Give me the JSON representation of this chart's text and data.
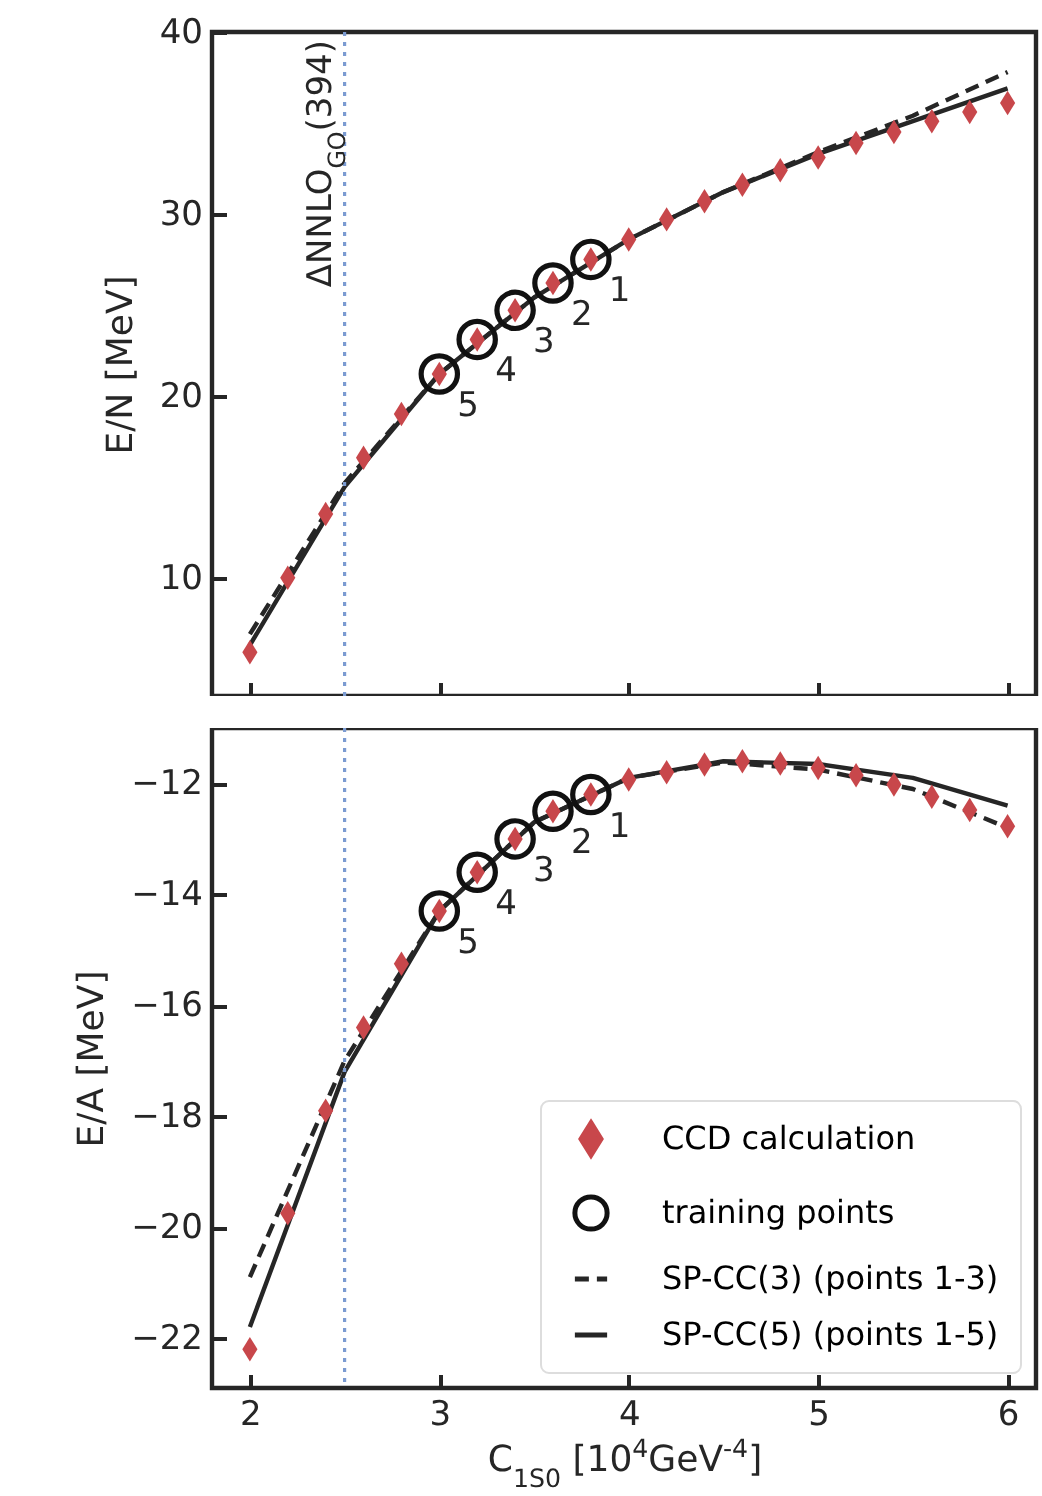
{
  "chart_data": [
    {
      "type": "scatter",
      "ylabel": "E/N [MeV]",
      "xlim": [
        1.8,
        6.15
      ],
      "xticks": [
        2,
        3,
        4,
        5,
        6
      ],
      "ylim": [
        3.5,
        40
      ],
      "yticks": [
        10,
        20,
        30,
        40
      ],
      "tick_labels": "y",
      "grid": false,
      "legend": false,
      "ref_lines": [
        {
          "axis": "x",
          "value": 2.5,
          "label": "ΔNNLO$_{GO}$(394)",
          "color": "#7b9bd1",
          "line_style": "dotted"
        }
      ],
      "annotations": [
        {
          "text": "1",
          "x": 3.8,
          "y": 27.5
        },
        {
          "text": "2",
          "x": 3.6,
          "y": 26.2
        },
        {
          "text": "3",
          "x": 3.4,
          "y": 24.7
        },
        {
          "text": "4",
          "x": 3.2,
          "y": 23.1
        },
        {
          "text": "5",
          "x": 3.0,
          "y": 21.2
        }
      ],
      "series": [
        {
          "type": "line",
          "color": "#262626",
          "line_style": "dashed",
          "marker": "none",
          "x": [
            2,
            2.5,
            3,
            3.5,
            4,
            4.5,
            5,
            5.5,
            6
          ],
          "values": [
            6.9,
            15.2,
            21.2,
            25.4,
            28.6,
            31.2,
            33.4,
            35.4,
            37.8
          ]
        },
        {
          "type": "line",
          "color": "#262626",
          "line_style": "solid",
          "marker": "none",
          "x": [
            2,
            2.5,
            3,
            3.5,
            4,
            4.5,
            5,
            5.5,
            6
          ],
          "values": [
            6.3,
            15.0,
            21.2,
            25.4,
            28.6,
            31.2,
            33.3,
            35.1,
            36.9
          ]
        },
        {
          "type": "scatter",
          "color": "#c8474b",
          "marker": "diamond",
          "x": [
            2,
            2.2,
            2.4,
            2.6,
            2.8,
            3,
            3.2,
            3.4,
            3.6,
            3.8,
            4,
            4.2,
            4.4,
            4.6,
            4.8,
            5,
            5.2,
            5.4,
            5.6,
            5.8,
            6
          ],
          "values": [
            5.9,
            10.0,
            13.5,
            16.6,
            19.0,
            21.2,
            23.1,
            24.7,
            26.2,
            27.5,
            28.6,
            29.7,
            30.7,
            31.6,
            32.4,
            33.1,
            33.9,
            34.5,
            35.1,
            35.6,
            36.1
          ]
        },
        {
          "type": "scatter",
          "color": "#111111",
          "marker": "circle",
          "x": [
            3.8,
            3.6,
            3.4,
            3.2,
            3.0
          ],
          "values": [
            27.5,
            26.2,
            24.7,
            23.1,
            21.2
          ]
        }
      ]
    },
    {
      "type": "scatter",
      "ylabel": "E/A [MeV]",
      "xlabel": "C$_{1S0}$ [10$^{4}$GeV$^{-4}$]",
      "xlim": [
        1.8,
        6.15
      ],
      "xticks": [
        2,
        3,
        4,
        5,
        6
      ],
      "ylim": [
        -22.9,
        -11.0
      ],
      "yticks": [
        -22,
        -20,
        -18,
        -16,
        -14,
        -12
      ],
      "grid": false,
      "legend": "bottom right",
      "ref_lines": [
        {
          "axis": "x",
          "value": 2.5,
          "color": "#7b9bd1",
          "line_style": "dotted"
        }
      ],
      "annotations": [
        {
          "text": "1",
          "x": 3.8,
          "y": -12.2
        },
        {
          "text": "2",
          "x": 3.6,
          "y": -12.5
        },
        {
          "text": "3",
          "x": 3.4,
          "y": -13.0
        },
        {
          "text": "4",
          "x": 3.2,
          "y": -13.6
        },
        {
          "text": "5",
          "x": 3.0,
          "y": -14.3
        }
      ],
      "series": [
        {
          "name": "CCD calculation",
          "type": "scatter",
          "color": "#c8474b",
          "marker": "diamond",
          "x": [
            2,
            2.2,
            2.4,
            2.6,
            2.8,
            3,
            3.2,
            3.4,
            3.6,
            3.8,
            4,
            4.2,
            4.4,
            4.6,
            4.8,
            5,
            5.2,
            5.4,
            5.6,
            5.8,
            6
          ],
          "values": [
            -22.2,
            -19.75,
            -17.9,
            -16.4,
            -15.25,
            -14.3,
            -13.6,
            -13.0,
            -12.5,
            -12.2,
            -11.93,
            -11.8,
            -11.66,
            -11.6,
            -11.64,
            -11.72,
            -11.85,
            -12.02,
            -12.24,
            -12.48,
            -12.77
          ]
        },
        {
          "name": "training points",
          "type": "scatter",
          "color": "#111111",
          "marker": "circle",
          "x": [
            3.8,
            3.6,
            3.4,
            3.2,
            3.0
          ],
          "values": [
            -12.2,
            -12.5,
            -13.0,
            -13.6,
            -14.3
          ]
        },
        {
          "name": "SP-CC(3) (points 1-3)",
          "type": "line",
          "color": "#262626",
          "line_style": "dashed",
          "marker": "none",
          "x": [
            2,
            2.5,
            3,
            3.5,
            4,
            4.5,
            5,
            5.5,
            6
          ],
          "values": [
            -20.9,
            -17.0,
            -14.3,
            -12.7,
            -11.9,
            -11.62,
            -11.75,
            -12.1,
            -12.8
          ]
        },
        {
          "name": "SP-CC(5) (points 1-5)",
          "type": "line",
          "color": "#262626",
          "line_style": "solid",
          "marker": "none",
          "x": [
            2,
            2.5,
            3,
            3.5,
            4,
            4.5,
            5,
            5.5,
            6
          ],
          "values": [
            -21.8,
            -17.2,
            -14.3,
            -12.7,
            -11.9,
            -11.6,
            -11.65,
            -11.9,
            -12.4
          ]
        }
      ]
    }
  ]
}
